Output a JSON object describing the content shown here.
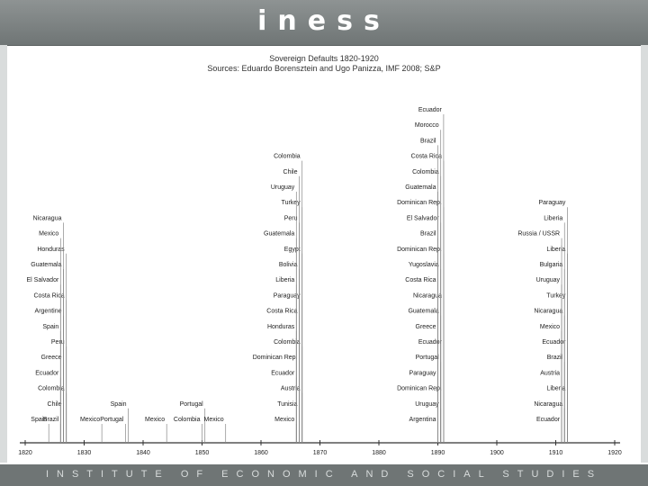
{
  "header": {
    "logo_text": "iness"
  },
  "footer": {
    "text": "INSTITUTE OF ECONOMIC AND SOCIAL STUDIES"
  },
  "colors": {
    "header_bg": "#6f7575",
    "line": "#888888",
    "axis": "#333333",
    "text": "#222222"
  },
  "chart_data": {
    "type": "timeline",
    "title": "Sovereign Defaults 1820-1920",
    "subtitle": "Sources: Eduardo Borensztein and Ugo Panizza, IMF 2008; S&P",
    "xlim": [
      1820,
      1920
    ],
    "x_ticks": [
      1820,
      1830,
      1840,
      1850,
      1860,
      1870,
      1880,
      1890,
      1900,
      1910,
      1920
    ],
    "events": [
      {
        "year": 1824,
        "countries": [
          "Spain"
        ]
      },
      {
        "year": 1826,
        "countries": [
          "Brazil",
          "Chile",
          "Colombia",
          "Ecuador",
          "Greece",
          "Peru",
          "Spain",
          "Argentine",
          "Costa Rica",
          "El Salvador",
          "Guatemala",
          "Honduras",
          "Mexico",
          "Nicaragua"
        ]
      },
      {
        "year": 1833,
        "countries": [
          "Mexico"
        ]
      },
      {
        "year": 1837,
        "countries": [
          "Portugal",
          "Spain"
        ]
      },
      {
        "year": 1844,
        "countries": [
          "Mexico"
        ]
      },
      {
        "year": 1850,
        "countries": [
          "Colombia",
          "Portugal"
        ]
      },
      {
        "year": 1854,
        "countries": [
          "Mexico"
        ]
      },
      {
        "year": 1866,
        "countries": [
          "Mexico",
          "Tunisia",
          "Austria",
          "Ecuador",
          "Dominican Rep.",
          "Colombia",
          "Honduras",
          "Costa Rica",
          "Paraguay",
          "Liberia",
          "Bolivia",
          "Egypt",
          "Guatemala",
          "Peru",
          "Turkey",
          "Uruguay",
          "Chile",
          "Colombia"
        ]
      },
      {
        "year": 1890,
        "countries": [
          "Argentina",
          "Uruguay",
          "Dominican Rep.",
          "Paraguay",
          "Portugal",
          "Ecuador",
          "Greece",
          "Guatemala",
          "Nicaragua",
          "Costa Rica",
          "Yugoslavia",
          "Dominican Rep.",
          "Brazil",
          "El Salvador",
          "Dominican Rep.",
          "Guatemala",
          "Colombia",
          "Costa Rica",
          "Brazil",
          "Morocco",
          "Ecuador"
        ]
      },
      {
        "year": 1911,
        "countries": [
          "Ecuador",
          "Nicaragua",
          "Liberia",
          "Austria",
          "Brazil",
          "Ecuador",
          "Mexico",
          "Nicaragua",
          "Turkey",
          "Uruguay",
          "Bulgaria",
          "Liberia",
          "Russia / USSR",
          "Liberia",
          "Paraguay"
        ]
      }
    ]
  }
}
